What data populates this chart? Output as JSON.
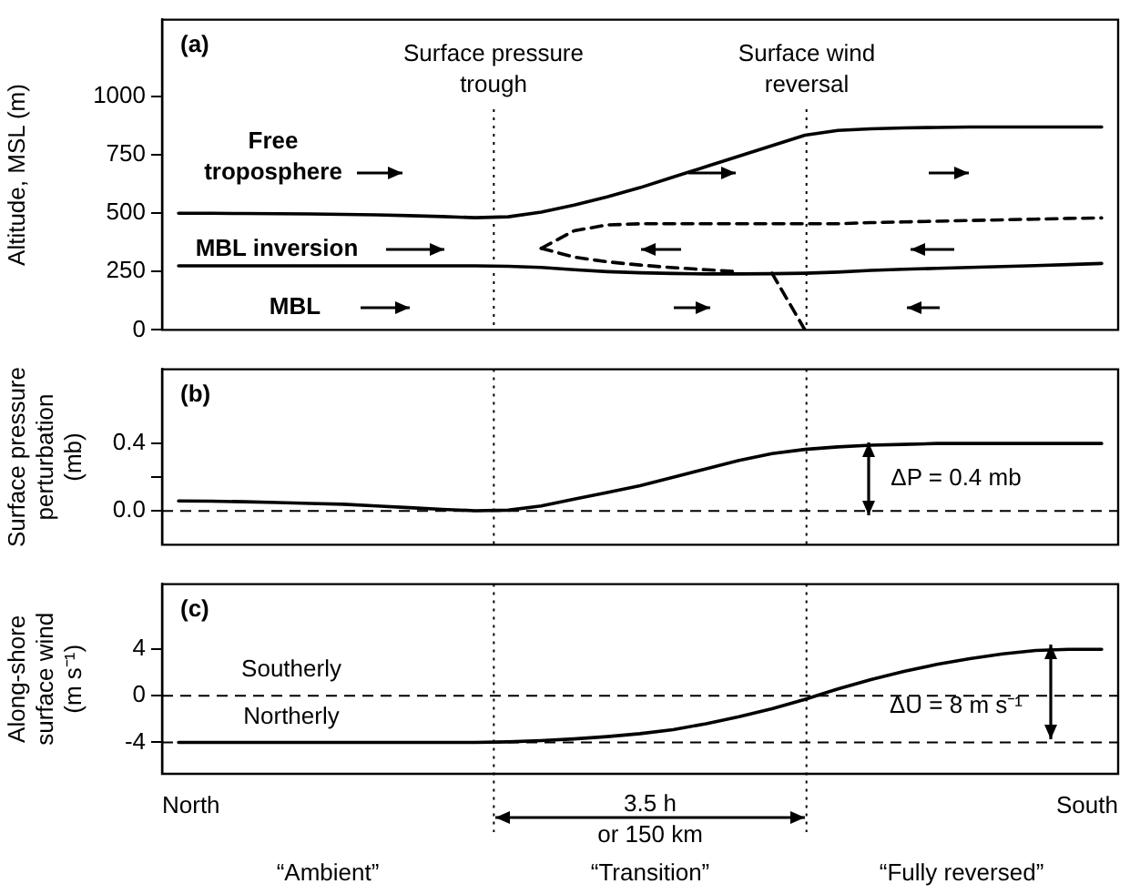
{
  "chart_data": [
    {
      "type": "line",
      "title": "(a)",
      "ylabel": "Altitude, MSL (m)",
      "categories": [
        null,
        null,
        null,
        null,
        null,
        null,
        null,
        null,
        null,
        null,
        null,
        null,
        null,
        null,
        null,
        null,
        null,
        null,
        null,
        null,
        null,
        null,
        null,
        null,
        null,
        null,
        null,
        null,
        null
      ],
      "ylim": [
        0,
        1330
      ],
      "yticks": [
        0,
        250,
        500,
        750,
        1000
      ],
      "tick_labels": "y",
      "grid": false,
      "legend": false,
      "marker": "none",
      "series": [
        {
          "color": "#000000",
          "line_style": "solid",
          "values": [
            500,
            500,
            499,
            498,
            497,
            495,
            493,
            490,
            486,
            481,
            485,
            505,
            535,
            570,
            610,
            655,
            700,
            745,
            790,
            835,
            855,
            862,
            866,
            868,
            870,
            870,
            870,
            870,
            870
          ]
        },
        {
          "color": "#000000",
          "line_style": "solid",
          "values": [
            275,
            275,
            275,
            275,
            275,
            275,
            275,
            275,
            275,
            275,
            273,
            268,
            258,
            250,
            245,
            242,
            240,
            240,
            241,
            243,
            248,
            255,
            260,
            264,
            268,
            272,
            276,
            280,
            285
          ]
        },
        {
          "color": "#000000",
          "line_style": "dashed",
          "values": [
            null,
            null,
            null,
            null,
            null,
            null,
            null,
            null,
            null,
            null,
            null,
            350,
            425,
            450,
            455,
            455,
            455,
            455,
            455,
            455,
            455,
            460,
            463,
            466,
            469,
            472,
            475,
            478,
            480
          ]
        },
        {
          "color": "#000000",
          "line_style": "dashed",
          "values": [
            null,
            null,
            null,
            null,
            null,
            null,
            null,
            null,
            null,
            null,
            null,
            350,
            312,
            292,
            278,
            267,
            258,
            250,
            null,
            null,
            null,
            null,
            null,
            null,
            null,
            null,
            null,
            null,
            null
          ]
        },
        {
          "color": "#000000",
          "line_style": "dashed",
          "values": [
            null,
            null,
            null,
            null,
            null,
            null,
            null,
            null,
            null,
            null,
            null,
            null,
            null,
            null,
            null,
            null,
            null,
            null,
            243,
            0,
            null,
            null,
            null,
            null,
            null,
            null,
            null,
            null,
            null
          ]
        }
      ],
      "annotations": [
        "Surface pressure trough",
        "Surface wind reversal",
        "Free troposphere",
        "MBL inversion",
        "MBL"
      ]
    },
    {
      "type": "line",
      "title": "(b)",
      "ylabel": "Surface pressure\nperturbation\n(mb)",
      "categories": [
        null,
        null,
        null,
        null,
        null,
        null,
        null,
        null,
        null,
        null,
        null,
        null,
        null,
        null,
        null,
        null,
        null,
        null,
        null,
        null,
        null,
        null,
        null,
        null,
        null,
        null,
        null,
        null,
        null
      ],
      "ylim": [
        -0.2,
        0.84
      ],
      "yticks": [
        {
          "value": 0,
          "label": "0.0"
        },
        {
          "value": 0.2,
          "label": null
        },
        {
          "value": 0.4,
          "label": "0.4"
        }
      ],
      "tick_labels": "y",
      "grid": false,
      "legend": false,
      "marker": "none",
      "series": [
        {
          "color": "#000000",
          "line_style": "solid",
          "values": [
            0.06,
            0.058,
            0.055,
            0.05,
            0.045,
            0.04,
            0.03,
            0.02,
            0.01,
            0.002,
            0.005,
            0.03,
            0.07,
            0.11,
            0.15,
            0.2,
            0.25,
            0.3,
            0.34,
            0.365,
            0.38,
            0.39,
            0.395,
            0.4,
            0.4,
            0.4,
            0.4,
            0.4,
            0.4
          ]
        }
      ],
      "ref_lines": [
        {
          "axis": "y",
          "value": 0,
          "color": "#000000",
          "line_style": "dashed"
        }
      ],
      "annotations": [
        "ΔP = 0.4 mb"
      ]
    },
    {
      "type": "line",
      "title": "(c)",
      "ylabel": "Along-shore\nsurface wind\n(m s⁻¹)",
      "categories": [
        null,
        null,
        null,
        null,
        null,
        null,
        null,
        null,
        null,
        null,
        null,
        null,
        null,
        null,
        null,
        null,
        null,
        null,
        null,
        null,
        null,
        null,
        null,
        null,
        null,
        null,
        null,
        null,
        null
      ],
      "ylim": [
        -6.7,
        9.6
      ],
      "yticks": [
        -4,
        0,
        4
      ],
      "tick_labels": "y",
      "grid": false,
      "legend": false,
      "marker": "none",
      "series": [
        {
          "color": "#000000",
          "line_style": "solid",
          "values": [
            -4,
            -4,
            -4,
            -4,
            -4,
            -4,
            -4,
            -4,
            -4,
            -4,
            -3.95,
            -3.85,
            -3.7,
            -3.5,
            -3.25,
            -2.9,
            -2.4,
            -1.8,
            -1.1,
            -0.3,
            0.6,
            1.4,
            2.1,
            2.7,
            3.2,
            3.6,
            3.9,
            4,
            4
          ]
        }
      ],
      "ref_lines": [
        {
          "axis": "y",
          "value": 0,
          "color": "#000000",
          "line_style": "dashed"
        },
        {
          "axis": "y",
          "value": -4,
          "color": "#000000",
          "line_style": "dashed"
        }
      ],
      "annotations": [
        "Southerly",
        "Northerly",
        "ΔU = 8 m s⁻¹",
        "North",
        "South",
        "3.5 h\nor 150 km",
        "“Ambient”",
        "“Transition”",
        "“Fully reversed”"
      ]
    }
  ]
}
